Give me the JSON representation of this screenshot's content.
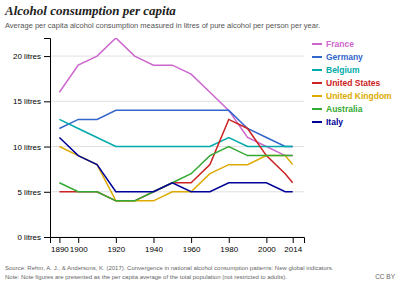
{
  "chart_data": {
    "type": "line",
    "title": "Alcohol consumption per capita",
    "subtitle": "Average per capita alcohol consumption measured in litres of pure alcohol per person per year.",
    "annotations": [
      "Source: Rehm, A. J., & Andersons, K. (2017). Convergence in national alcohol consumption patterns: New global indicators.",
      "Note: Note figures are presented as the per capita average of the total population (not restricted to adults).",
      "CC BY"
    ],
    "x": [
      1890,
      1900,
      1910,
      1920,
      1930,
      1940,
      1950,
      1960,
      1970,
      1980,
      1990,
      2000,
      2010,
      2014
    ],
    "xlim": [
      1885,
      2020
    ],
    "xticks": [
      1890,
      1900,
      1920,
      1940,
      1960,
      1980,
      2000,
      2014
    ],
    "ylim": [
      0,
      22
    ],
    "yticks": [
      {
        "value": 0,
        "label": "0 litres"
      },
      {
        "value": 5,
        "label": "5 litres"
      },
      {
        "value": 10,
        "label": "10 litres"
      },
      {
        "value": 15,
        "label": "15 litres"
      },
      {
        "value": 20,
        "label": "20 litres"
      }
    ],
    "grid": true,
    "legend": "right",
    "series": [
      {
        "name": "France",
        "color": "#cc66cc",
        "values": [
          16,
          19,
          20,
          22,
          20,
          19,
          19,
          18,
          16,
          14,
          11,
          10,
          9,
          9
        ]
      },
      {
        "name": "Germany",
        "color": "#3366cc",
        "values": [
          12,
          13,
          13,
          14,
          14,
          14,
          14,
          14,
          14,
          14,
          12,
          11,
          10,
          10
        ]
      },
      {
        "name": "Belgium",
        "color": "#00aaaa",
        "values": [
          13,
          12,
          11,
          10,
          10,
          10,
          10,
          10,
          10,
          11,
          10,
          10,
          10,
          10
        ]
      },
      {
        "name": "United States",
        "color": "#cc2222",
        "values": [
          5,
          5,
          5,
          4,
          4,
          5,
          6,
          6,
          8,
          13,
          12,
          9,
          7,
          6
        ]
      },
      {
        "name": "United Kingdom",
        "color": "#ddaa00",
        "values": [
          10,
          9,
          8,
          4,
          4,
          4,
          5,
          5,
          7,
          8,
          8,
          9,
          9,
          8
        ]
      },
      {
        "name": "Australia",
        "color": "#33aa33",
        "values": [
          6,
          5,
          5,
          4,
          4,
          5,
          6,
          7,
          9,
          10,
          9,
          9,
          9,
          9
        ]
      },
      {
        "name": "Italy",
        "color": "#000099",
        "values": [
          11,
          9,
          8,
          5,
          5,
          5,
          6,
          5,
          5,
          6,
          6,
          6,
          5,
          5
        ]
      }
    ]
  }
}
